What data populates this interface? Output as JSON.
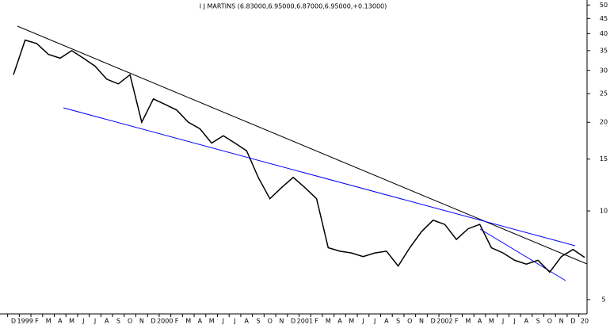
{
  "chart_data": {
    "type": "line",
    "title": "I J MARTINS (6.83000,6.95000,6.87000,6.95000,+0.13000)",
    "categories": [
      "D",
      "1999",
      "F",
      "M",
      "A",
      "M",
      "J",
      "J",
      "A",
      "S",
      "O",
      "N",
      "D",
      "2000",
      "F",
      "M",
      "A",
      "M",
      "J",
      "J",
      "A",
      "S",
      "O",
      "N",
      "D",
      "2001",
      "F",
      "M",
      "A",
      "M",
      "J",
      "J",
      "A",
      "S",
      "O",
      "N",
      "D",
      "2002",
      "F",
      "M",
      "A",
      "M",
      "J",
      "J",
      "A",
      "S",
      "O",
      "N",
      "D",
      "20"
    ],
    "series": [
      {
        "name": "I J MARTINS",
        "color": "#000000",
        "values": [
          29,
          38,
          37,
          34,
          33,
          35,
          33,
          31,
          28,
          27,
          29,
          20,
          24,
          23,
          22,
          20,
          19,
          17,
          18,
          17,
          16,
          13,
          11,
          12,
          13,
          12,
          11,
          7.5,
          7.3,
          7.2,
          7,
          7.2,
          7.3,
          6.5,
          7.5,
          8.5,
          9.3,
          9,
          8,
          8.7,
          9,
          7.5,
          7.2,
          6.8,
          6.6,
          6.8,
          6.2,
          7,
          7.4,
          6.95
        ]
      }
    ],
    "ylim": [
      4.5,
      52
    ],
    "yticks": [
      5,
      10,
      15,
      20,
      25,
      30,
      35,
      40,
      45,
      50
    ],
    "log_scale": true
  }
}
